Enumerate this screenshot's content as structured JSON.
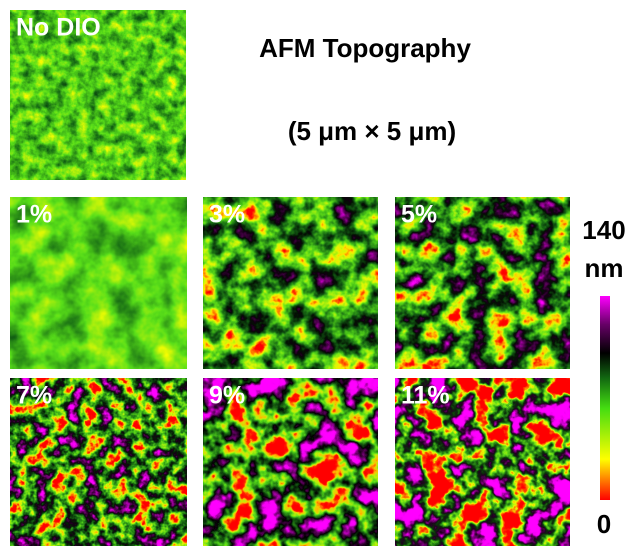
{
  "title": "AFM Topography",
  "subtitle": "(5 μm × 5 μm)",
  "panels": [
    {
      "label": "No DIO"
    },
    {
      "label": "1%"
    },
    {
      "label": "3%"
    },
    {
      "label": "5%"
    },
    {
      "label": "7%"
    },
    {
      "label": "9%"
    },
    {
      "label": "11%"
    }
  ],
  "colorbar": {
    "max": 140,
    "unit": "nm",
    "min": 0
  }
}
